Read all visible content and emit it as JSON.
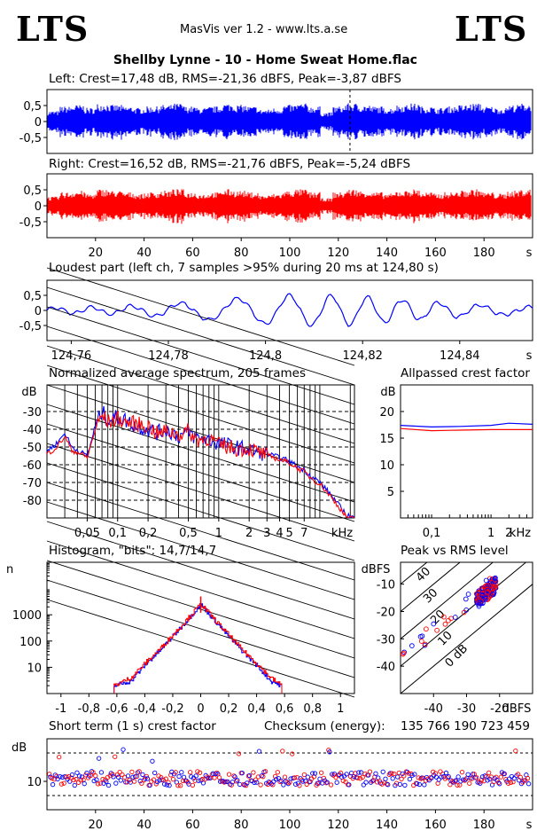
{
  "header": {
    "logo_left": "LTS",
    "logo_right": "LTS",
    "app_title": "MasVis ver 1.2 - www.lts.a.se",
    "track_title": "Shellby Lynne - 10 - Home Sweat Home.flac"
  },
  "chart_data": [
    {
      "id": "left_waveform",
      "type": "area",
      "title": "Left: Crest=17,48 dB, RMS=-21,36 dBFS, Peak=-3,87 dBFS",
      "ylim": [
        -1,
        1
      ],
      "xlim": [
        0,
        200
      ],
      "yticks": [
        0.5,
        0,
        -0.5
      ],
      "ytick_labels": [
        "0,5",
        "0",
        "-0,5"
      ],
      "color": "#0000ff",
      "marker_x": 124.8,
      "duration_s": 200,
      "envelope": [
        0.35,
        0.5,
        0.55,
        0.45,
        0.6,
        0.55,
        0.5,
        0.45,
        0.5,
        0.55,
        0.6,
        0.5,
        0.45,
        0.5,
        0.6,
        0.55,
        0.5,
        0.4,
        0.45,
        0.55,
        0.6,
        0.5,
        0.3,
        0.5,
        0.6,
        0.55,
        0.5,
        0.45,
        0.55,
        0.6,
        0.5,
        0.45,
        0.5,
        0.55,
        0.6,
        0.5,
        0.45,
        0.55,
        0.6,
        0.3
      ]
    },
    {
      "id": "right_waveform",
      "type": "area",
      "title": "Right: Crest=16,52 dB, RMS=-21,76 dBFS, Peak=-5,24 dBFS",
      "ylim": [
        -1,
        1
      ],
      "xlim": [
        0,
        200
      ],
      "yticks": [
        0.5,
        0,
        -0.5
      ],
      "ytick_labels": [
        "0,5",
        "0",
        "-0,5"
      ],
      "xticks": [
        20,
        40,
        60,
        80,
        100,
        120,
        140,
        160,
        180
      ],
      "xunit": "s",
      "color": "#ff0000",
      "envelope": [
        0.3,
        0.45,
        0.5,
        0.4,
        0.55,
        0.5,
        0.45,
        0.4,
        0.45,
        0.5,
        0.55,
        0.45,
        0.4,
        0.45,
        0.55,
        0.5,
        0.45,
        0.35,
        0.4,
        0.5,
        0.55,
        0.45,
        0.25,
        0.45,
        0.55,
        0.5,
        0.45,
        0.4,
        0.5,
        0.55,
        0.45,
        0.4,
        0.45,
        0.5,
        0.55,
        0.45,
        0.4,
        0.5,
        0.55,
        0.25
      ]
    },
    {
      "id": "loudest_part",
      "type": "line",
      "title": "Loudest part (left  ch, 7 samples >95% during 20 ms at 124,80 s)",
      "xlim": [
        124.755,
        124.855
      ],
      "ylim": [
        -1,
        1
      ],
      "yticks": [
        0.5,
        0,
        -0.5
      ],
      "ytick_labels": [
        "0,5",
        "0",
        "-0,5"
      ],
      "xticks": [
        124.76,
        124.78,
        124.8,
        124.82,
        124.84
      ],
      "xtick_labels": [
        "124,76",
        "124,78",
        "124,8",
        "124,82",
        "124,84"
      ],
      "xunit": "s",
      "color": "#0000ff"
    },
    {
      "id": "avg_spectrum",
      "type": "line",
      "title": "Normalized average spectrum, 205 frames",
      "ylabel": "dB",
      "xunit": "kHz",
      "ylim": [
        -90,
        -15
      ],
      "yticks": [
        -30,
        -40,
        -50,
        -60,
        -70,
        -80
      ],
      "xtick_labels": [
        "0,05",
        "0,1",
        "0,2",
        "0,5",
        "1",
        "2",
        "3",
        "4",
        "5",
        "7"
      ],
      "xtick_values": [
        0.05,
        0.1,
        0.2,
        0.5,
        1,
        2,
        3,
        4,
        5,
        7
      ],
      "xlim": [
        0.02,
        22
      ],
      "series": [
        {
          "color": "#0000ff",
          "x": [
            0.02,
            0.025,
            0.03,
            0.035,
            0.04,
            0.05,
            0.06,
            0.07,
            0.08,
            0.1,
            0.12,
            0.15,
            0.2,
            0.25,
            0.3,
            0.4,
            0.5,
            0.6,
            0.8,
            1,
            1.5,
            2,
            3,
            4,
            5,
            6,
            7,
            8,
            10,
            12,
            15,
            18,
            22
          ],
          "y": [
            -52,
            -48,
            -42,
            -50,
            -52,
            -55,
            -38,
            -30,
            -35,
            -33,
            -35,
            -38,
            -40,
            -42,
            -40,
            -44,
            -42,
            -45,
            -46,
            -48,
            -50,
            -52,
            -54,
            -56,
            -58,
            -61,
            -63,
            -66,
            -70,
            -75,
            -82,
            -88,
            -90
          ]
        },
        {
          "color": "#ff0000",
          "x": [
            0.02,
            0.025,
            0.03,
            0.035,
            0.04,
            0.05,
            0.06,
            0.07,
            0.08,
            0.1,
            0.12,
            0.15,
            0.2,
            0.25,
            0.3,
            0.4,
            0.5,
            0.6,
            0.8,
            1,
            1.5,
            2,
            3,
            4,
            5,
            6,
            7,
            8,
            10,
            12,
            15,
            18,
            22
          ],
          "y": [
            -54,
            -50,
            -44,
            -52,
            -53,
            -56,
            -40,
            -32,
            -36,
            -34,
            -36,
            -37,
            -38,
            -43,
            -41,
            -43,
            -41,
            -46,
            -45,
            -49,
            -51,
            -51,
            -55,
            -57,
            -59,
            -62,
            -64,
            -67,
            -71,
            -76,
            -83,
            -89,
            -91
          ]
        }
      ]
    },
    {
      "id": "allpassed_crest",
      "type": "line",
      "title": "Allpassed crest factor",
      "ylabel": "dB",
      "xunit": "kHz",
      "ylim": [
        0,
        25
      ],
      "yticks": [
        20,
        15,
        10,
        5
      ],
      "xtick_labels": [
        "0,1",
        "1",
        "2"
      ],
      "xtick_values": [
        0.1,
        1,
        2
      ],
      "xlim": [
        0.03,
        5
      ],
      "series": [
        {
          "color": "#0000ff",
          "x": [
            0.03,
            0.1,
            0.3,
            1,
            2,
            5
          ],
          "y": [
            17.4,
            17.1,
            17.2,
            17.4,
            17.8,
            17.6
          ]
        },
        {
          "color": "#ff0000",
          "x": [
            0.03,
            0.1,
            0.3,
            1,
            2,
            5
          ],
          "y": [
            16.8,
            16.4,
            16.5,
            16.6,
            16.6,
            16.6
          ]
        }
      ]
    },
    {
      "id": "histogram",
      "type": "line",
      "title": "Histogram, \"bits\": 14,7/14,7",
      "ylabel": "n",
      "yscale": "log",
      "ylim": [
        1,
        100000
      ],
      "yticks": [
        1000,
        100,
        10
      ],
      "xlim": [
        -1.1,
        1.1
      ],
      "xtick_values": [
        -1,
        -0.8,
        -0.6,
        -0.4,
        -0.2,
        0,
        0.2,
        0.4,
        0.6,
        0.8,
        1
      ],
      "xtick_labels": [
        "-1",
        "-0,8",
        "-0,6",
        "-0,4",
        "-0,2",
        "0",
        "0,2",
        "0,4",
        "0,6",
        "0,8",
        "1"
      ],
      "series": [
        {
          "color": "#0000ff",
          "x": [
            -0.62,
            -0.5,
            -0.4,
            -0.3,
            -0.2,
            -0.1,
            0,
            0.1,
            0.2,
            0.3,
            0.4,
            0.5,
            0.58
          ],
          "y": [
            2,
            3,
            12,
            40,
            150,
            600,
            2500,
            600,
            150,
            40,
            12,
            3,
            2
          ]
        },
        {
          "color": "#ff0000",
          "x": [
            -0.62,
            -0.5,
            -0.4,
            -0.3,
            -0.2,
            -0.1,
            0,
            0.1,
            0.2,
            0.3,
            0.4,
            0.5,
            0.58
          ],
          "y": [
            2,
            4,
            14,
            45,
            170,
            650,
            2600,
            650,
            170,
            45,
            14,
            4,
            2
          ]
        }
      ]
    },
    {
      "id": "peak_vs_rms",
      "type": "scatter",
      "title": "Peak vs RMS level",
      "ylabel": "dBFS",
      "xlabel": "dBFS",
      "xlim": [
        -50,
        -10
      ],
      "ylim": [
        -50,
        -2
      ],
      "xticks": [
        -40,
        -30,
        -20
      ],
      "yticks": [
        -10,
        -20,
        -30,
        -40
      ],
      "diag_labels": [
        "40",
        "30",
        "20",
        "10",
        "0 dB"
      ],
      "diag_offsets": [
        40,
        30,
        20,
        10,
        0
      ]
    },
    {
      "id": "short_term_crest",
      "type": "scatter",
      "title": "Short term (1 s) crest factor",
      "checksum_label": "Checksum (energy):",
      "checksum_value": "135 766 190 723 459",
      "ylabel": "dB",
      "ytick_labels": [
        "10"
      ],
      "yticks": [
        10
      ],
      "ylim": [
        0,
        25
      ],
      "xlim": [
        0,
        200
      ],
      "xticks": [
        20,
        40,
        60,
        80,
        100,
        120,
        140,
        160,
        180
      ],
      "xunit": "s",
      "dashed_levels": [
        20,
        5
      ]
    }
  ]
}
